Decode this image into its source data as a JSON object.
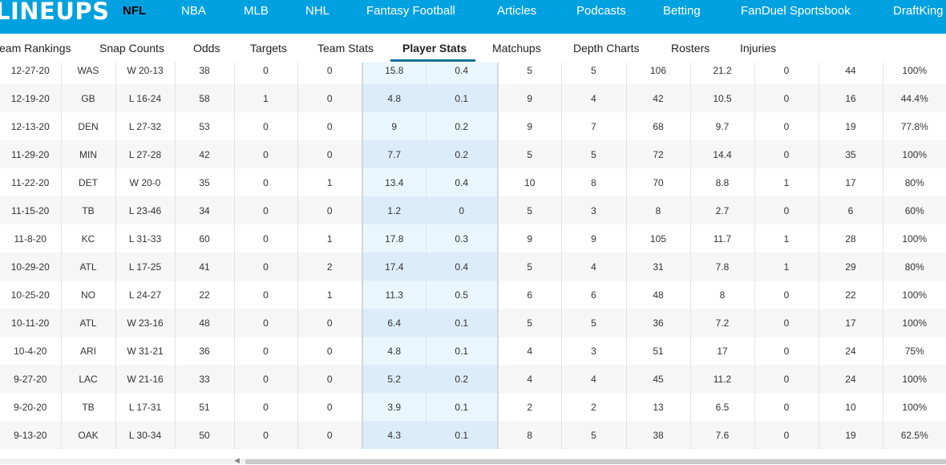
{
  "brand": {
    "logo_text": "LINEUPS"
  },
  "top_nav": [
    {
      "label": "NFL",
      "active": true
    },
    {
      "label": "NBA"
    },
    {
      "label": "MLB"
    },
    {
      "label": "NHL"
    },
    {
      "label": "Fantasy Football"
    },
    {
      "label": "Articles"
    },
    {
      "label": "Podcasts"
    },
    {
      "label": "Betting"
    },
    {
      "label": "FanDuel Sportsbook"
    },
    {
      "label": "DraftKing"
    }
  ],
  "sub_nav": [
    {
      "label": "Team Rankings"
    },
    {
      "label": "Snap Counts"
    },
    {
      "label": "Odds"
    },
    {
      "label": "Targets"
    },
    {
      "label": "Team Stats"
    },
    {
      "label": "Player Stats",
      "active": true
    },
    {
      "label": "Matchups"
    },
    {
      "label": "Depth Charts"
    },
    {
      "label": "Rosters"
    },
    {
      "label": "Injuries"
    }
  ],
  "colors": {
    "brand_blue": "#00a1e0",
    "highlight_col": "#eaf6fd",
    "tab_underline": "#0e71a0"
  },
  "rows": [
    [
      "12-27-20",
      "WAS",
      "W 20-13",
      "38",
      "0",
      "0",
      "15.8",
      "0.4",
      "5",
      "5",
      "106",
      "21.2",
      "0",
      "44",
      "100%"
    ],
    [
      "12-19-20",
      "GB",
      "L 16-24",
      "58",
      "1",
      "0",
      "4.8",
      "0.1",
      "9",
      "4",
      "42",
      "10.5",
      "0",
      "16",
      "44.4%"
    ],
    [
      "12-13-20",
      "DEN",
      "L 27-32",
      "53",
      "0",
      "0",
      "9",
      "0.2",
      "9",
      "7",
      "68",
      "9.7",
      "0",
      "19",
      "77.8%"
    ],
    [
      "11-29-20",
      "MIN",
      "L 27-28",
      "42",
      "0",
      "0",
      "7.7",
      "0.2",
      "5",
      "5",
      "72",
      "14.4",
      "0",
      "35",
      "100%"
    ],
    [
      "11-22-20",
      "DET",
      "W 20-0",
      "35",
      "0",
      "1",
      "13.4",
      "0.4",
      "10",
      "8",
      "70",
      "8.8",
      "1",
      "17",
      "80%"
    ],
    [
      "11-15-20",
      "TB",
      "L 23-46",
      "34",
      "0",
      "0",
      "1.2",
      "0",
      "5",
      "3",
      "8",
      "2.7",
      "0",
      "6",
      "60%"
    ],
    [
      "11-8-20",
      "KC",
      "L 31-33",
      "60",
      "0",
      "1",
      "17.8",
      "0.3",
      "9",
      "9",
      "105",
      "11.7",
      "1",
      "28",
      "100%"
    ],
    [
      "10-29-20",
      "ATL",
      "L 17-25",
      "41",
      "0",
      "2",
      "17.4",
      "0.4",
      "5",
      "4",
      "31",
      "7.8",
      "1",
      "29",
      "80%"
    ],
    [
      "10-25-20",
      "NO",
      "L 24-27",
      "22",
      "0",
      "1",
      "11.3",
      "0.5",
      "6",
      "6",
      "48",
      "8",
      "0",
      "22",
      "100%"
    ],
    [
      "10-11-20",
      "ATL",
      "W 23-16",
      "48",
      "0",
      "0",
      "6.4",
      "0.1",
      "5",
      "5",
      "36",
      "7.2",
      "0",
      "17",
      "100%"
    ],
    [
      "10-4-20",
      "ARI",
      "W 31-21",
      "36",
      "0",
      "0",
      "4.8",
      "0.1",
      "4",
      "3",
      "51",
      "17",
      "0",
      "24",
      "75%"
    ],
    [
      "9-27-20",
      "LAC",
      "W 21-16",
      "33",
      "0",
      "0",
      "5.2",
      "0.2",
      "4",
      "4",
      "45",
      "11.2",
      "0",
      "24",
      "100%"
    ],
    [
      "9-20-20",
      "TB",
      "L 17-31",
      "51",
      "0",
      "0",
      "3.9",
      "0.1",
      "2",
      "2",
      "13",
      "6.5",
      "0",
      "10",
      "100%"
    ],
    [
      "9-13-20",
      "OAK",
      "L 30-34",
      "50",
      "0",
      "0",
      "4.3",
      "0.1",
      "8",
      "5",
      "38",
      "7.6",
      "0",
      "19",
      "62.5%"
    ]
  ]
}
